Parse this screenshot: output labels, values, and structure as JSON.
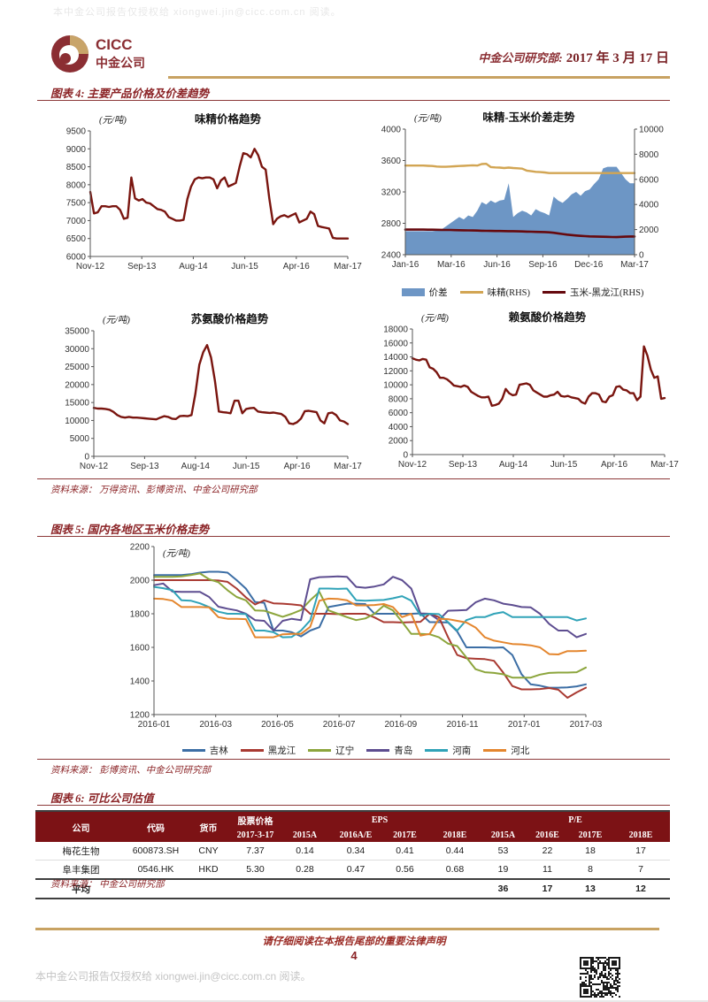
{
  "header": {
    "brand_en": "CICC",
    "brand_cn": "中金公司",
    "dept_label": "中金公司研究部:",
    "date": "2017 年 3 月 17 日"
  },
  "watermark_top": "本中金公司报告仅授权给 xiongwei.jin@cicc.com.cn 阅读。",
  "figure4": {
    "title": "图表 4: 主要产品价格及价差趋势",
    "source": "资料来源：  万得资讯、彭博资讯、中金公司研究部"
  },
  "figure5": {
    "title": "图表 5: 国内各地区玉米价格走势",
    "source": "资料来源：  彭博资讯、中金公司研究部"
  },
  "figure6": {
    "title": "图表 6: 可比公司估值",
    "source": "资料来源：  中金公司研究部",
    "table": {
      "col1": [
        "公司",
        "代码",
        "货币"
      ],
      "price_group": "股票价格",
      "price_sub": "2017-3-17",
      "eps_group": "EPS",
      "pe_group": "P/E",
      "eps_cols": [
        "2015A",
        "2016A/E",
        "2017E",
        "2018E"
      ],
      "pe_cols": [
        "2015A",
        "2016E",
        "2017E",
        "2018E"
      ],
      "rows": [
        [
          "梅花生物",
          "600873.SH",
          "CNY",
          "7.37",
          "0.14",
          "0.34",
          "0.41",
          "0.44",
          "53",
          "22",
          "18",
          "17"
        ],
        [
          "阜丰集团",
          "0546.HK",
          "HKD",
          "5.30",
          "0.28",
          "0.47",
          "0.56",
          "0.68",
          "19",
          "11",
          "8",
          "7"
        ]
      ],
      "avg_label": "平均",
      "avg_pe": [
        "36",
        "17",
        "13",
        "12"
      ]
    }
  },
  "footer": {
    "legal": "请仔细阅读在本报告尾部的重要法律声明",
    "page": "4",
    "watermark": "本中金公司报告仅授权给 xiongwei.jin@cicc.com.cn 阅读。"
  },
  "colors": {
    "brand_maroon": "#8b2e33",
    "gold": "#c8a262",
    "chart_maroon": "#7a150f",
    "area_blue": "#6d96c5",
    "gold_line": "#d2a553",
    "dark_corn": "#66090e"
  },
  "chart_data": [
    {
      "type": "line",
      "title": "味精价格趋势",
      "unit": "(元/吨)",
      "ylim": [
        6000,
        9500
      ],
      "yticks": [
        6000,
        6500,
        7000,
        7500,
        8000,
        8500,
        9000,
        9500
      ],
      "xticklabels": [
        "Nov-12",
        "Sep-13",
        "Aug-14",
        "Jun-15",
        "Apr-16",
        "Mar-17"
      ],
      "grid": false,
      "series": [
        {
          "name": "味精价格",
          "color": "#7a150f",
          "width": 2.4,
          "values": [
            7800,
            7200,
            7230,
            7400,
            7400,
            7380,
            7400,
            7400,
            7300,
            7050,
            7080,
            8200,
            7620,
            7560,
            7600,
            7500,
            7480,
            7400,
            7320,
            7300,
            7250,
            7100,
            7050,
            7000,
            7000,
            7020,
            7600,
            7950,
            8150,
            8200,
            8180,
            8200,
            8200,
            8150,
            7900,
            8120,
            8200,
            7950,
            8000,
            8050,
            8500,
            8880,
            8850,
            8760,
            9000,
            8820,
            8500,
            8420,
            7600,
            6900,
            7050,
            7120,
            7150,
            7100,
            7150,
            7200,
            6950,
            7000,
            7050,
            7250,
            7180,
            6850,
            6820,
            6800,
            6780,
            6520,
            6500,
            6500,
            6500,
            6500
          ]
        }
      ]
    },
    {
      "type": "area+line",
      "title": "味精-玉米价差走势",
      "unit": "(元/吨)",
      "ylim": [
        2400,
        4000
      ],
      "yticks": [
        2400,
        2800,
        3200,
        3600,
        4000
      ],
      "y2lim": [
        0,
        10000
      ],
      "y2ticks": [
        0,
        2000,
        4000,
        6000,
        8000,
        10000
      ],
      "xticklabels": [
        "Jan-16",
        "Mar-16",
        "Jun-16",
        "Sep-16",
        "Dec-16",
        "Mar-17"
      ],
      "grid": false,
      "area": {
        "name": "价差",
        "axis": "left",
        "color": "#6d96c5",
        "values": [
          2700,
          2700,
          2700,
          2700,
          2700,
          2700,
          2700,
          2705,
          2720,
          2760,
          2800,
          2840,
          2880,
          2850,
          2900,
          2880,
          2960,
          3070,
          3040,
          3090,
          3060,
          3090,
          3100,
          3310,
          2880,
          2930,
          2960,
          2940,
          2900,
          2980,
          2950,
          2930,
          2900,
          3140,
          3090,
          3060,
          3110,
          3170,
          3200,
          3150,
          3210,
          3230,
          3300,
          3360,
          3500,
          3520,
          3520,
          3520,
          3440,
          3360,
          3310,
          3310
        ]
      },
      "series": [
        {
          "name": "味精(RHS)",
          "axis": "right",
          "color": "#d2a553",
          "width": 2.4,
          "values": [
            7100,
            7100,
            7100,
            7100,
            7100,
            7080,
            7060,
            7020,
            7000,
            7000,
            7020,
            7040,
            7060,
            7080,
            7100,
            7120,
            7100,
            7220,
            7240,
            6980,
            6950,
            6940,
            6900,
            6940,
            6900,
            6880,
            6850,
            6700,
            6650,
            6600,
            6580,
            6550,
            6500,
            6500,
            6500,
            6500,
            6500,
            6500,
            6500,
            6500,
            6500,
            6500,
            6500,
            6500,
            6500,
            6500,
            6500,
            6500,
            6500,
            6500,
            6500,
            6500
          ]
        },
        {
          "name": "玉米-黑龙江(RHS)",
          "axis": "right",
          "color": "#66090e",
          "width": 2.6,
          "values": [
            2000,
            2000,
            2000,
            2000,
            2000,
            1995,
            1990,
            1985,
            1980,
            1975,
            1970,
            1960,
            1950,
            1945,
            1940,
            1930,
            1920,
            1910,
            1900,
            1895,
            1890,
            1885,
            1880,
            1875,
            1870,
            1860,
            1850,
            1840,
            1830,
            1820,
            1810,
            1800,
            1780,
            1750,
            1700,
            1650,
            1600,
            1560,
            1530,
            1500,
            1480,
            1460,
            1450,
            1440,
            1430,
            1420,
            1410,
            1400,
            1420,
            1440,
            1450,
            1450
          ]
        }
      ]
    },
    {
      "type": "line",
      "title": "苏氨酸价格趋势",
      "unit": "(元/吨)",
      "ylim": [
        0,
        35000
      ],
      "yticks": [
        0,
        5000,
        10000,
        15000,
        20000,
        25000,
        30000,
        35000
      ],
      "xticklabels": [
        "Nov-12",
        "Sep-13",
        "Aug-14",
        "Jun-15",
        "Apr-16",
        "Mar-17"
      ],
      "grid": false,
      "series": [
        {
          "name": "苏氨酸价格",
          "color": "#7a150f",
          "width": 2.4,
          "values": [
            13500,
            13300,
            13300,
            13200,
            13000,
            12400,
            11500,
            11000,
            10800,
            11000,
            10800,
            10800,
            10700,
            10600,
            10500,
            10400,
            10300,
            10800,
            11200,
            11000,
            10500,
            10400,
            11200,
            11300,
            11200,
            11500,
            17500,
            25500,
            29000,
            31000,
            27500,
            21000,
            12500,
            12300,
            12200,
            12000,
            15500,
            15500,
            12000,
            13200,
            13400,
            13500,
            12500,
            12300,
            12200,
            12100,
            12200,
            12000,
            11800,
            11000,
            9200,
            9000,
            9500,
            10500,
            12600,
            12700,
            12500,
            12300,
            10000,
            9200,
            12000,
            12200,
            11500,
            10000,
            9700,
            9000
          ]
        }
      ]
    },
    {
      "type": "line",
      "title": "赖氨酸价格趋势",
      "unit": "(元/吨)",
      "ylim": [
        0,
        18000
      ],
      "yticks": [
        0,
        2000,
        4000,
        6000,
        8000,
        10000,
        12000,
        14000,
        16000,
        18000
      ],
      "xticklabels": [
        "Nov-12",
        "Sep-13",
        "Aug-14",
        "Jun-15",
        "Apr-16",
        "Mar-17"
      ],
      "grid": false,
      "series": [
        {
          "name": "赖氨酸价格",
          "color": "#7a150f",
          "width": 2.4,
          "values": [
            13800,
            13600,
            13500,
            13700,
            13600,
            12500,
            12300,
            11800,
            11000,
            11000,
            10800,
            10400,
            9900,
            9800,
            9700,
            9900,
            9700,
            9000,
            8700,
            8400,
            8200,
            8200,
            8300,
            7000,
            7100,
            7300,
            8000,
            9400,
            8800,
            8500,
            8600,
            10000,
            10100,
            10200,
            10000,
            9200,
            8900,
            8600,
            8300,
            8300,
            8500,
            8600,
            9000,
            8400,
            8300,
            8400,
            8200,
            8100,
            8000,
            7500,
            7300,
            8300,
            8800,
            8800,
            8600,
            7600,
            7500,
            8300,
            8500,
            9700,
            9800,
            9300,
            9200,
            8800,
            8800,
            7800,
            8300,
            15500,
            14200,
            12200,
            11000,
            11200,
            8000,
            8100
          ]
        }
      ]
    },
    {
      "type": "line",
      "title": "",
      "unit": "(元/吨)",
      "ylim": [
        1200,
        2200
      ],
      "yticks": [
        1200,
        1400,
        1600,
        1800,
        2000,
        2200
      ],
      "xticklabels": [
        "2016-01",
        "2016-03",
        "2016-05",
        "2016-07",
        "2016-09",
        "2016-11",
        "2017-01",
        "2017-03"
      ],
      "grid": false,
      "legend_position": "bottom",
      "series": [
        {
          "name": "吉林",
          "color": "#3c6ea5",
          "width": 2,
          "values": [
            2030,
            2030,
            2030,
            2030,
            2035,
            2045,
            2050,
            2050,
            2045,
            2000,
            1950,
            1870,
            1865,
            1700,
            1700,
            1690,
            1665,
            1700,
            1720,
            1840,
            1850,
            1860,
            1860,
            1858,
            1800,
            1800,
            1800,
            1800,
            1800,
            1802,
            1750,
            1750,
            1748,
            1695,
            1600,
            1600,
            1600,
            1598,
            1600,
            1555,
            1440,
            1380,
            1372,
            1360,
            1360,
            1362,
            1368,
            1380
          ]
        },
        {
          "name": "黑龙江",
          "color": "#a93a32",
          "width": 2,
          "values": [
            2000,
            2000,
            2000,
            2000,
            2000,
            2000,
            2000,
            1998,
            1990,
            1950,
            1898,
            1855,
            1880,
            1862,
            1860,
            1856,
            1850,
            1800,
            1800,
            1800,
            1798,
            1800,
            1800,
            1800,
            1778,
            1750,
            1750,
            1748,
            1750,
            1752,
            1800,
            1780,
            1660,
            1555,
            1535,
            1532,
            1530,
            1520,
            1450,
            1370,
            1350,
            1350,
            1352,
            1358,
            1348,
            1300,
            1332,
            1360
          ]
        },
        {
          "name": "辽宁",
          "color": "#8ca53c",
          "width": 2,
          "values": [
            2020,
            2020,
            2020,
            2022,
            2030,
            2040,
            2005,
            1988,
            1940,
            1900,
            1880,
            1820,
            1818,
            1800,
            1782,
            1800,
            1822,
            1880,
            1930,
            1820,
            1800,
            1780,
            1762,
            1772,
            1800,
            1848,
            1820,
            1752,
            1680,
            1680,
            1678,
            1660,
            1622,
            1608,
            1540,
            1470,
            1452,
            1448,
            1440,
            1420,
            1420,
            1420,
            1438,
            1448,
            1450,
            1450,
            1452,
            1480
          ]
        },
        {
          "name": "青岛",
          "color": "#5d4d90",
          "width": 2,
          "values": [
            1970,
            1980,
            1932,
            1930,
            1930,
            1930,
            1900,
            1842,
            1830,
            1820,
            1800,
            1762,
            1758,
            1700,
            1758,
            1770,
            1762,
            2005,
            2018,
            2020,
            2022,
            2020,
            1960,
            1955,
            1962,
            1975,
            2020,
            2000,
            1950,
            1802,
            1800,
            1762,
            1818,
            1820,
            1822,
            1868,
            1890,
            1880,
            1860,
            1852,
            1840,
            1838,
            1800,
            1740,
            1700,
            1700,
            1660,
            1680
          ]
        },
        {
          "name": "河南",
          "color": "#30a3b8",
          "width": 2,
          "values": [
            1960,
            1952,
            1940,
            1880,
            1878,
            1862,
            1840,
            1812,
            1800,
            1800,
            1798,
            1700,
            1700,
            1690,
            1660,
            1662,
            1700,
            1760,
            1950,
            1950,
            1948,
            1950,
            1880,
            1878,
            1880,
            1882,
            1892,
            1905,
            1878,
            1790,
            1800,
            1798,
            1750,
            1700,
            1762,
            1780,
            1780,
            1800,
            1810,
            1780,
            1780,
            1780,
            1780,
            1780,
            1780,
            1780,
            1760,
            1772
          ]
        },
        {
          "name": "河北",
          "color": "#e4862e",
          "width": 2,
          "values": [
            1890,
            1888,
            1878,
            1840,
            1840,
            1840,
            1838,
            1780,
            1770,
            1770,
            1768,
            1660,
            1660,
            1660,
            1678,
            1680,
            1680,
            1722,
            1878,
            1890,
            1888,
            1880,
            1850,
            1850,
            1852,
            1858,
            1840,
            1780,
            1800,
            1670,
            1680,
            1770,
            1768,
            1758,
            1748,
            1718,
            1660,
            1640,
            1630,
            1620,
            1618,
            1612,
            1600,
            1560,
            1558,
            1578,
            1578,
            1580
          ]
        }
      ]
    }
  ]
}
